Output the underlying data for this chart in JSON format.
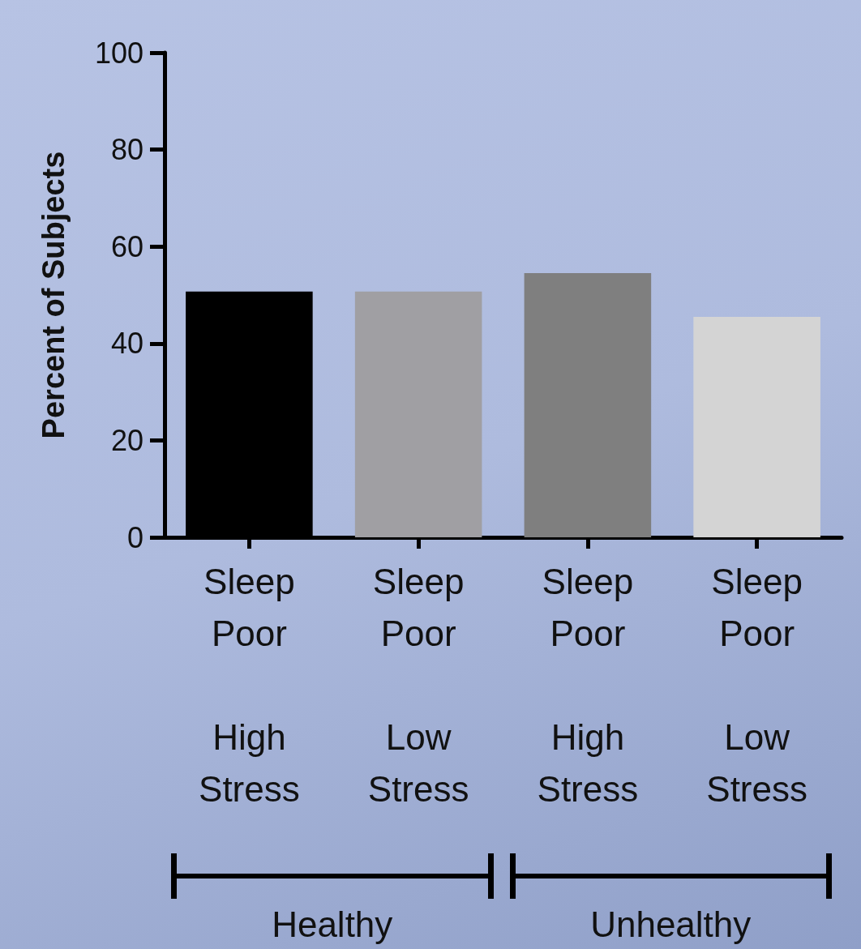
{
  "chart_data": {
    "type": "bar",
    "ylabel": "Percent of Subjects",
    "categories": [
      "Sleep\nPoor\n\nHigh\nStress",
      "Sleep\nPoor\n\nLow\nStress",
      "Sleep\nPoor\n\nHigh\nStress",
      "Sleep\nPoor\n\nLow\nStress"
    ],
    "values": [
      50.7,
      50.7,
      54.5,
      45.5
    ],
    "colors": [
      "#000000",
      "#a09fa3",
      "#7f7f7f",
      "#d4d4d4"
    ],
    "ylim": [
      0,
      100
    ],
    "yticks": [
      0,
      20,
      40,
      60,
      80,
      100
    ],
    "grid": false,
    "annotations": [
      "Healthy",
      "Unhealthy"
    ]
  }
}
